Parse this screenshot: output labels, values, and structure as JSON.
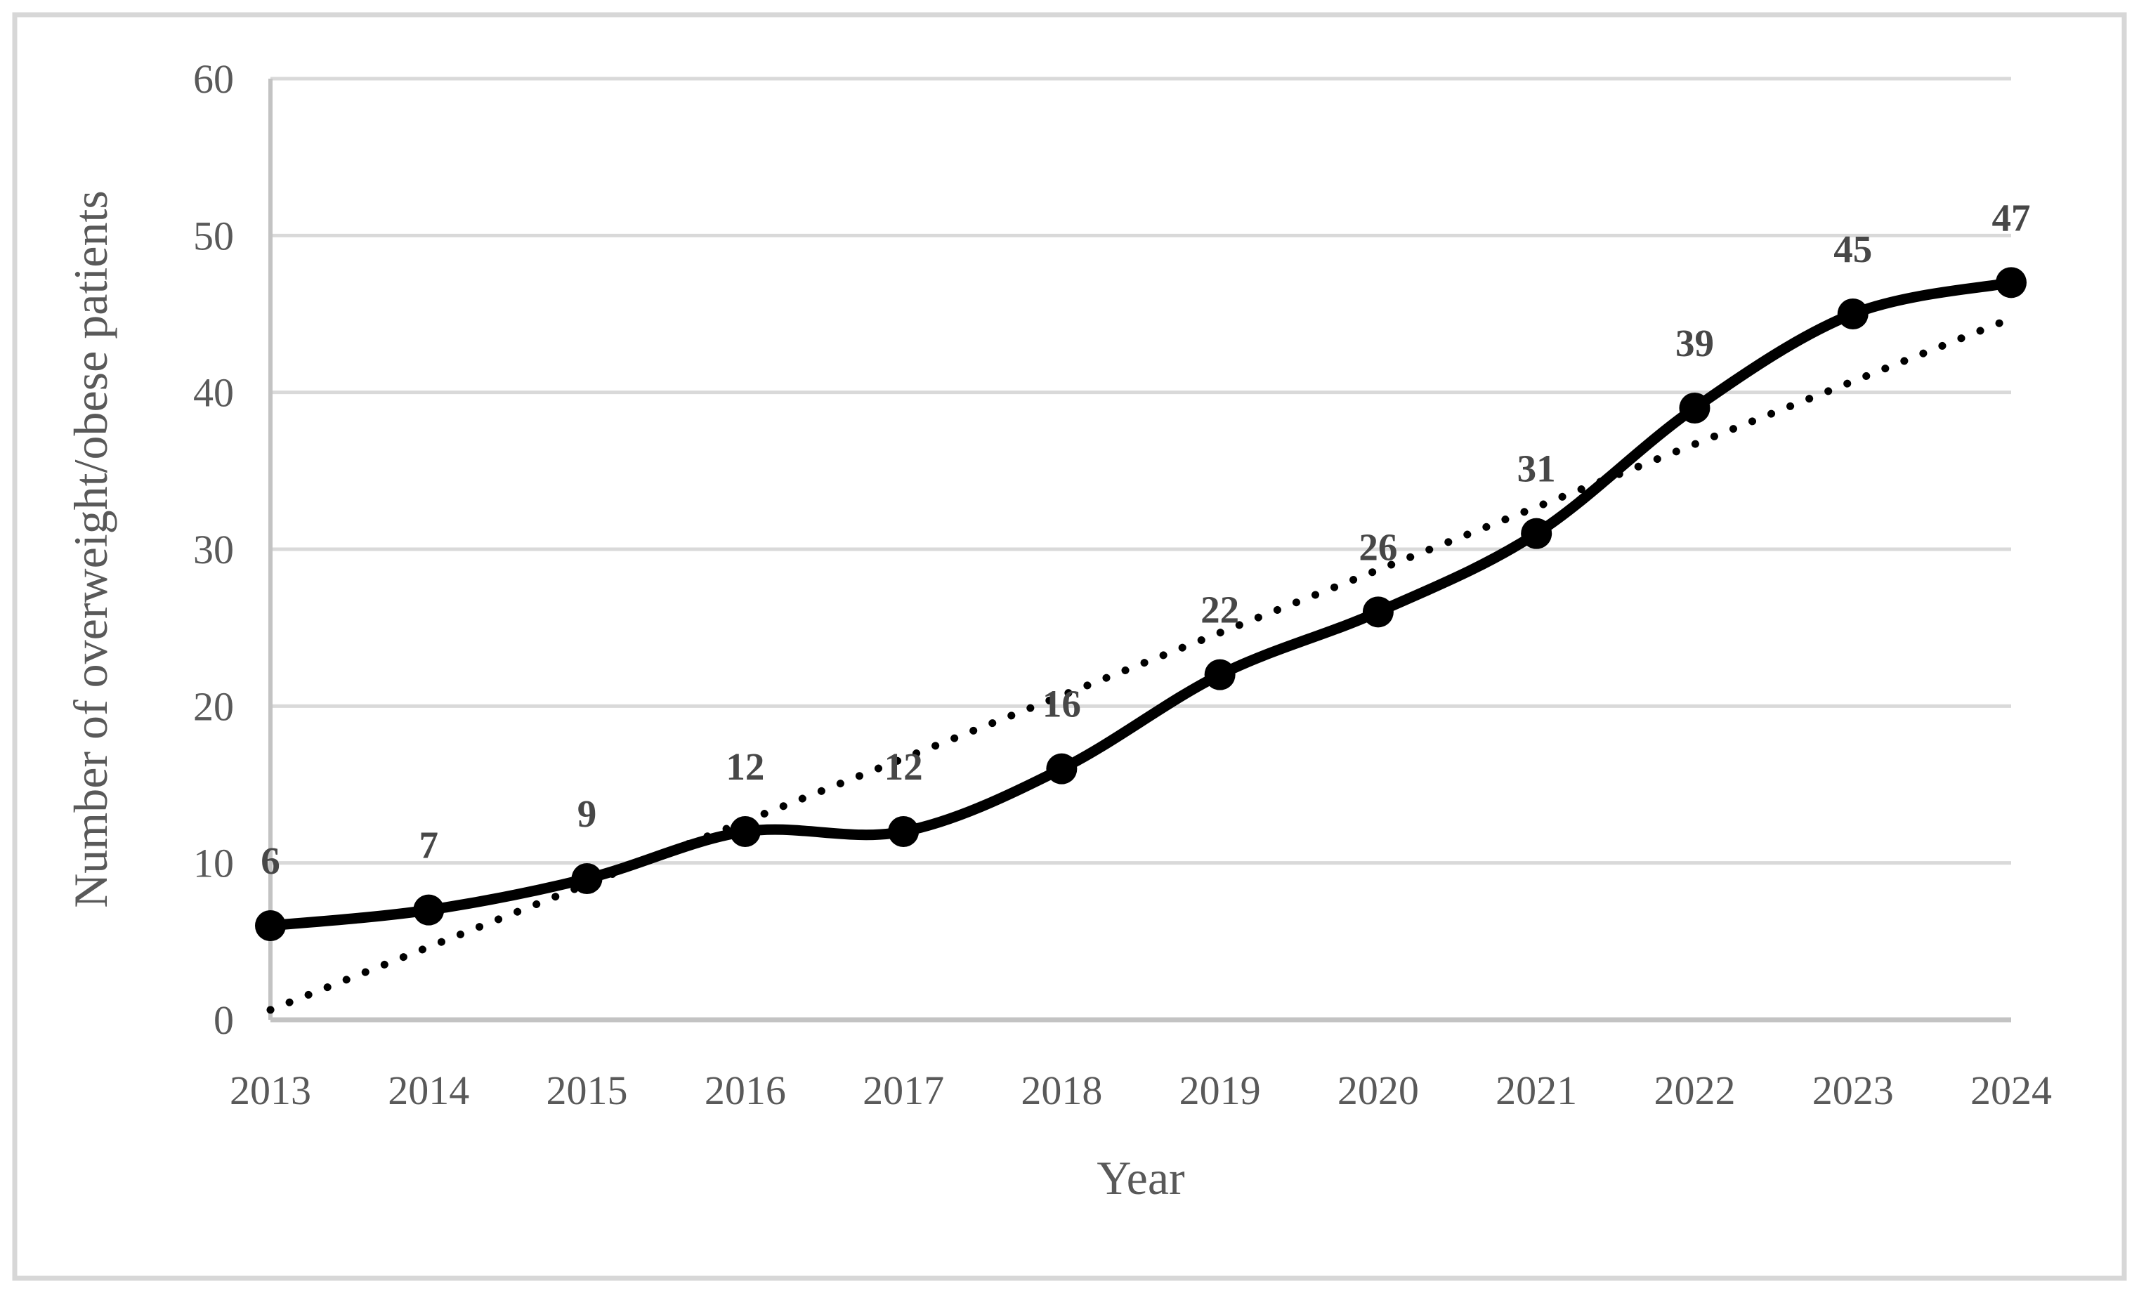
{
  "figure": {
    "background_color": "#ffffff",
    "border_color": "#d7d7d7"
  },
  "chart_data": {
    "type": "line",
    "title": "",
    "xlabel": "Year",
    "ylabel": "Number of overweight/obese patients",
    "categories": [
      "2013",
      "2014",
      "2015",
      "2016",
      "2017",
      "2018",
      "2019",
      "2020",
      "2021",
      "2022",
      "2023",
      "2024"
    ],
    "series": [
      {
        "name": "Number of overweight/obese patients",
        "values": [
          6,
          7,
          9,
          12,
          12,
          16,
          22,
          26,
          31,
          39,
          45,
          47
        ],
        "color": "#000000",
        "line_style": "solid-smoothed",
        "marker": "filled-circle",
        "data_labels": [
          6,
          7,
          9,
          12,
          12,
          16,
          22,
          26,
          31,
          39,
          45,
          47
        ],
        "data_label_position": "above"
      }
    ],
    "trendline": {
      "type": "linear",
      "style": "dotted",
      "color": "#000000",
      "slope": 4.007,
      "intercept": -3.375
    },
    "ylim": [
      0,
      60
    ],
    "ytick_step": 10,
    "yticks": [
      "0",
      "10",
      "20",
      "30",
      "40",
      "50",
      "60"
    ],
    "grid": "horizontal",
    "legend": "none",
    "colors": {
      "text": "#595959",
      "data_label_text": "#474747",
      "gridline": "#d9d9d9",
      "axis_line": "#c3c3c3",
      "series": "#000000"
    }
  }
}
